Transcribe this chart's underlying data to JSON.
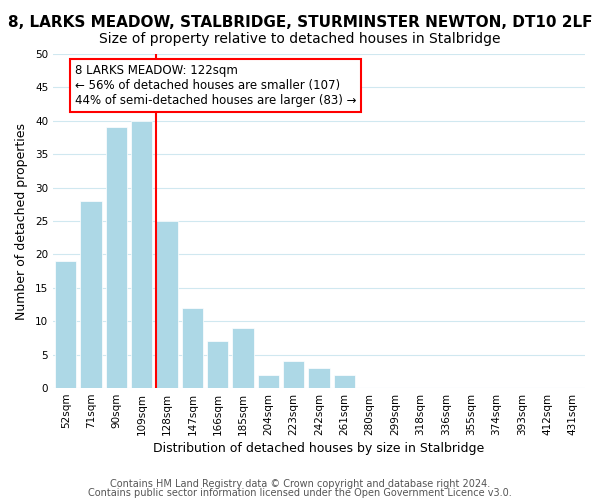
{
  "title": "8, LARKS MEADOW, STALBRIDGE, STURMINSTER NEWTON, DT10 2LF",
  "subtitle": "Size of property relative to detached houses in Stalbridge",
  "xlabel": "Distribution of detached houses by size in Stalbridge",
  "ylabel": "Number of detached properties",
  "bar_labels": [
    "52sqm",
    "71sqm",
    "90sqm",
    "109sqm",
    "128sqm",
    "147sqm",
    "166sqm",
    "185sqm",
    "204sqm",
    "223sqm",
    "242sqm",
    "261sqm",
    "280sqm",
    "299sqm",
    "318sqm",
    "336sqm",
    "355sqm",
    "374sqm",
    "393sqm",
    "412sqm",
    "431sqm"
  ],
  "bar_values": [
    19,
    28,
    39,
    40,
    25,
    12,
    7,
    9,
    2,
    4,
    3,
    2,
    0,
    0,
    0,
    0,
    0,
    0,
    0,
    0,
    0
  ],
  "bar_color": "#add8e6",
  "vline_x": 3.575,
  "vline_color": "red",
  "annotation_line1": "8 LARKS MEADOW: 122sqm",
  "annotation_line2": "← 56% of detached houses are smaller (107)",
  "annotation_line3": "44% of semi-detached houses are larger (83) →",
  "annotation_box_color": "white",
  "annotation_box_edge": "red",
  "ylim": [
    0,
    50
  ],
  "yticks": [
    0,
    5,
    10,
    15,
    20,
    25,
    30,
    35,
    40,
    45,
    50
  ],
  "grid_color": "#d0e8f0",
  "footer_line1": "Contains HM Land Registry data © Crown copyright and database right 2024.",
  "footer_line2": "Contains public sector information licensed under the Open Government Licence v3.0.",
  "title_fontsize": 11,
  "subtitle_fontsize": 10,
  "axis_label_fontsize": 9,
  "tick_fontsize": 7.5,
  "annotation_fontsize": 8.5,
  "footer_fontsize": 7
}
